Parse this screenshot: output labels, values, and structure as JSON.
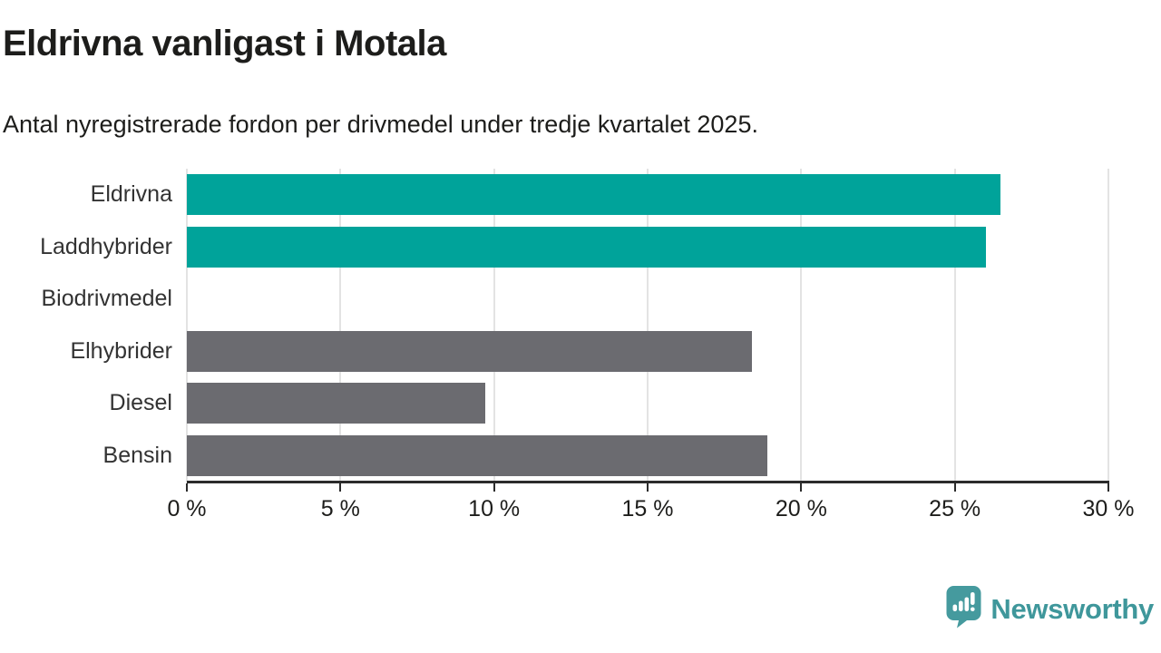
{
  "header": {
    "title": "Eldrivna vanligast i Motala",
    "subtitle": "Antal nyregistrerade fordon per drivmedel under tredje kvartalet 2025."
  },
  "chart_data": {
    "type": "bar",
    "orientation": "horizontal",
    "title": "Eldrivna vanligast i Motala",
    "subtitle": "Antal nyregistrerade fordon per drivmedel under tredje kvartalet 2025.",
    "categories": [
      "Eldrivna",
      "Laddhybrider",
      "Biodrivmedel",
      "Elhybrider",
      "Diesel",
      "Bensin"
    ],
    "values": [
      26.5,
      26.0,
      0,
      18.4,
      9.7,
      18.9
    ],
    "unit": "%",
    "xlim": [
      0,
      30
    ],
    "x_tick_step": 5,
    "x_tick_labels": [
      "0 %",
      "5 %",
      "10 %",
      "15 %",
      "20 %",
      "25 %",
      "30 %"
    ],
    "bar_colors": [
      "#00a39a",
      "#00a39a",
      "#6b6b70",
      "#6b6b70",
      "#6b6b70",
      "#6b6b70"
    ],
    "grid": "vertical",
    "legend": "none",
    "xlabel": "",
    "ylabel": ""
  },
  "logo": {
    "brand": "Newsworthy",
    "icon": "speech-bubble-bar-chart-exclamation",
    "color": "#459a9e"
  },
  "colors": {
    "accent_teal": "#00a39a",
    "bar_gray": "#6b6b70",
    "gridline": "#e3e3e3",
    "axis": "#2b2b2b",
    "text_dark": "#1d1d1b",
    "label_gray": "#333333",
    "logo_teal": "#3f979b"
  }
}
